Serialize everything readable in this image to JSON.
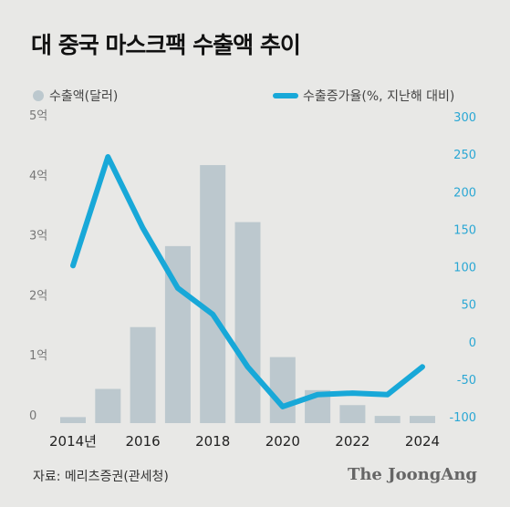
{
  "title": "대 중국 마스크팩 수출액 추이",
  "source": "자료: 메리츠증권(관세청)",
  "brand": "The JoongAng",
  "colors": {
    "bar": "#bcc8ce",
    "line": "#18a8d8",
    "background": "#e8e8e6"
  },
  "chart_data": {
    "type": "bar+line",
    "x": [
      2014,
      2015,
      2016,
      2017,
      2018,
      2019,
      2020,
      2021,
      2022,
      2023,
      2024
    ],
    "x_tick_labels": [
      "2014년",
      "2016",
      "2018",
      "2020",
      "2022",
      "2024"
    ],
    "series": [
      {
        "name": "수출액(달러)",
        "type": "bar",
        "axis": "left",
        "unit": "억 달러",
        "values": [
          0.1,
          0.57,
          1.6,
          2.95,
          4.3,
          3.35,
          1.1,
          0.55,
          0.3,
          0.12,
          0.12
        ]
      },
      {
        "name": "수출증가율(%, 지난해 대비)",
        "type": "line",
        "axis": "right",
        "unit": "%",
        "values": [
          110,
          255,
          160,
          80,
          45,
          -25,
          -78,
          -62,
          -60,
          -62,
          -25
        ]
      }
    ],
    "y_left": {
      "range": [
        0,
        5
      ],
      "tick_labels": [
        "0",
        "1억",
        "2억",
        "3억",
        "4억",
        "5억"
      ]
    },
    "y_right": {
      "range": [
        -100,
        300
      ],
      "tick_labels": [
        "-100",
        "-50",
        "0",
        "50",
        "100",
        "150",
        "200",
        "250",
        "300"
      ]
    },
    "legend_placement": "top",
    "grid": false
  }
}
